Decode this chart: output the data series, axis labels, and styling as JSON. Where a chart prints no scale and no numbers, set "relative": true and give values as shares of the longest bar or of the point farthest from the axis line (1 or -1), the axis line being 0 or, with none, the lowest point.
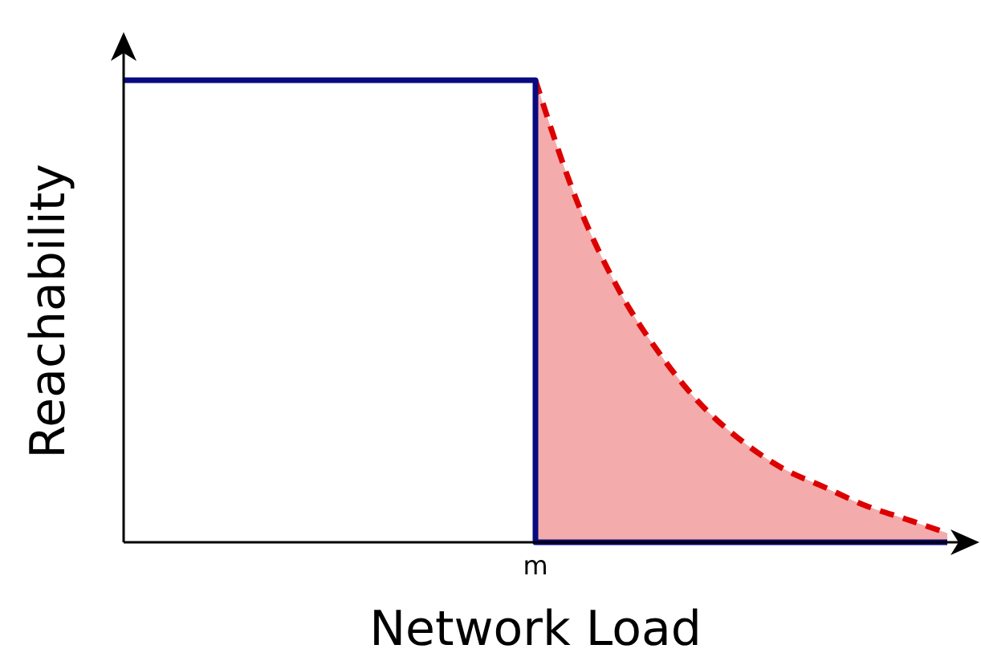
{
  "chart_data": {
    "type": "step",
    "relative": true,
    "xlabel": "Network Load",
    "ylabel": "Reachability",
    "categories": [
      null,
      null,
      null,
      null,
      null,
      null,
      null,
      null,
      null,
      null,
      null,
      null,
      null,
      null,
      null,
      null,
      null,
      null,
      null,
      null,
      null
    ],
    "annotations": [
      "m"
    ],
    "series": [
      {
        "type": "area",
        "color": "#dd0000",
        "line_style": "dashed",
        "values": [
          null,
          null,
          null,
          null,
          null,
          null,
          null,
          null,
          null,
          null,
          1,
          0.74,
          0.55,
          0.41,
          0.3,
          0.22,
          0.16,
          0.12,
          0.08,
          0.05,
          0.02
        ]
      },
      {
        "color": "#0a0a80",
        "line_style": "solid",
        "values": [
          1,
          1,
          1,
          1,
          1,
          1,
          1,
          1,
          1,
          1,
          0,
          0,
          0,
          0,
          0,
          0,
          0,
          0,
          0,
          0,
          0
        ]
      }
    ]
  }
}
